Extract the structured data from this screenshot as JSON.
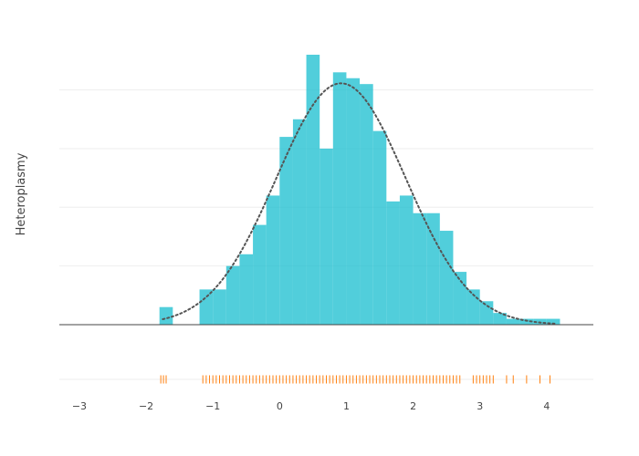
{
  "chart_data": {
    "type": "histogram",
    "ylabel": "Heteroplasmy",
    "xlim": [
      -3.3,
      4.7
    ],
    "ylim": [
      0,
      0.46
    ],
    "x_ticks": [
      -3,
      -2,
      -1,
      0,
      1,
      2,
      3,
      4
    ],
    "x_tick_labels": [
      "−3",
      "−2",
      "−1",
      "0",
      "1",
      "2",
      "3",
      "4"
    ],
    "grid": true,
    "bin_width": 0.2,
    "histogram": {
      "bin_edges": [
        -1.8,
        -1.6,
        -1.4,
        -1.2,
        -1.0,
        -0.8,
        -0.6,
        -0.4,
        -0.2,
        0.0,
        0.2,
        0.4,
        0.6,
        0.8,
        1.0,
        1.2,
        1.4,
        1.6,
        1.8,
        2.0,
        2.2,
        2.4,
        2.6,
        2.8,
        3.0,
        3.2,
        3.4,
        3.6,
        3.8,
        4.0,
        4.2
      ],
      "density": [
        0.03,
        0.0,
        0.0,
        0.06,
        0.06,
        0.1,
        0.12,
        0.17,
        0.22,
        0.32,
        0.35,
        0.46,
        0.3,
        0.43,
        0.42,
        0.41,
        0.33,
        0.21,
        0.22,
        0.19,
        0.19,
        0.16,
        0.09,
        0.06,
        0.04,
        0.02,
        0.01,
        0.01,
        0.01,
        0.01
      ],
      "color": "#17becf",
      "opacity": 0.75
    },
    "curve": {
      "type": "normal-pdf",
      "mean": 0.92,
      "sd": 0.97,
      "x_range": [
        -1.75,
        4.15
      ],
      "color": "#555555",
      "dash": "dotted"
    },
    "rug": {
      "color": "#ff7f0e",
      "x": [
        -1.78,
        -1.74,
        -1.7,
        -1.15,
        -1.1,
        -1.05,
        -1.0,
        -0.95,
        -0.9,
        -0.85,
        -0.8,
        -0.75,
        -0.7,
        -0.65,
        -0.6,
        -0.55,
        -0.5,
        -0.45,
        -0.4,
        -0.35,
        -0.3,
        -0.25,
        -0.2,
        -0.15,
        -0.1,
        -0.05,
        0.0,
        0.05,
        0.1,
        0.15,
        0.2,
        0.25,
        0.3,
        0.35,
        0.4,
        0.45,
        0.5,
        0.55,
        0.6,
        0.65,
        0.7,
        0.75,
        0.8,
        0.85,
        0.9,
        0.95,
        1.0,
        1.05,
        1.1,
        1.15,
        1.2,
        1.25,
        1.3,
        1.35,
        1.4,
        1.45,
        1.5,
        1.55,
        1.6,
        1.65,
        1.7,
        1.75,
        1.8,
        1.85,
        1.9,
        1.95,
        2.0,
        2.05,
        2.1,
        2.15,
        2.2,
        2.25,
        2.3,
        2.35,
        2.4,
        2.45,
        2.5,
        2.55,
        2.6,
        2.65,
        2.7,
        2.9,
        2.95,
        3.0,
        3.05,
        3.1,
        3.15,
        3.2,
        3.4,
        3.5,
        3.7,
        3.9,
        4.05
      ]
    }
  }
}
